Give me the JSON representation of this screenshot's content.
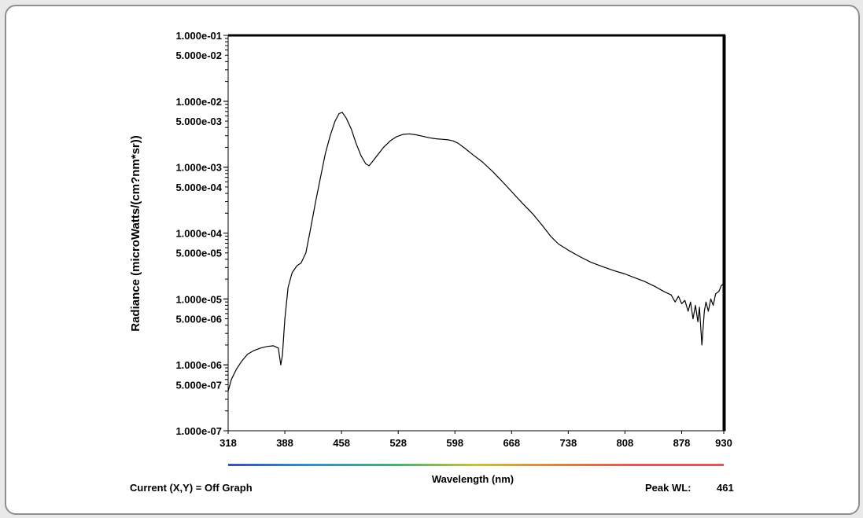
{
  "status": {
    "current_readout": "Current (X,Y) = Off Graph",
    "peak_label": "Peak WL:",
    "peak_value": "461"
  },
  "chart_data": {
    "type": "line",
    "ylabel": "Radiance (microWatts/(cm?nm*sr))",
    "xlabel": "Wavelength (nm)",
    "x_ticks": [
      318,
      388,
      458,
      528,
      598,
      668,
      738,
      808,
      878,
      930
    ],
    "x_tick_labels": [
      "318",
      "388",
      "458",
      "528",
      "598",
      "668",
      "738",
      "808",
      "878",
      "930"
    ],
    "xlim": [
      318,
      930
    ],
    "y_scale": "log",
    "ylim": [
      1e-07,
      0.1
    ],
    "y_tick_labels": [
      {
        "value": 0.1,
        "label": "1.000e-01"
      },
      {
        "value": 0.05,
        "label": "5.000e-02"
      },
      {
        "value": 0.01,
        "label": "1.000e-02"
      },
      {
        "value": 0.005,
        "label": "5.000e-03"
      },
      {
        "value": 0.001,
        "label": "1.000e-03"
      },
      {
        "value": 0.0005,
        "label": "5.000e-04"
      },
      {
        "value": 0.0001,
        "label": "1.000e-04"
      },
      {
        "value": 5e-05,
        "label": "5.000e-05"
      },
      {
        "value": 1e-05,
        "label": "1.000e-05"
      },
      {
        "value": 5e-06,
        "label": "5.000e-06"
      },
      {
        "value": 1e-06,
        "label": "1.000e-06"
      },
      {
        "value": 5e-07,
        "label": "5.000e-07"
      },
      {
        "value": 1e-07,
        "label": "1.000e-07"
      }
    ],
    "series": [
      {
        "color": "#000000",
        "points": [
          [
            318,
            4e-07
          ],
          [
            322,
            6e-07
          ],
          [
            328,
            8.5e-07
          ],
          [
            335,
            1.15e-06
          ],
          [
            342,
            1.45e-06
          ],
          [
            350,
            1.65e-06
          ],
          [
            358,
            1.8e-06
          ],
          [
            366,
            1.9e-06
          ],
          [
            374,
            1.95e-06
          ],
          [
            380,
            1.8e-06
          ],
          [
            383,
            1e-06
          ],
          [
            385,
            1.4e-06
          ],
          [
            388,
            5e-06
          ],
          [
            392,
            1.5e-05
          ],
          [
            397,
            2.5e-05
          ],
          [
            403,
            3.2e-05
          ],
          [
            408,
            3.5e-05
          ],
          [
            414,
            5e-05
          ],
          [
            420,
            0.00012
          ],
          [
            426,
            0.0003
          ],
          [
            432,
            0.0007
          ],
          [
            438,
            0.0016
          ],
          [
            444,
            0.003
          ],
          [
            450,
            0.005
          ],
          [
            455,
            0.0065
          ],
          [
            459,
            0.0068
          ],
          [
            464,
            0.0055
          ],
          [
            470,
            0.0038
          ],
          [
            476,
            0.0023
          ],
          [
            482,
            0.0015
          ],
          [
            488,
            0.00112
          ],
          [
            492,
            0.00105
          ],
          [
            496,
            0.0012
          ],
          [
            502,
            0.0015
          ],
          [
            510,
            0.002
          ],
          [
            518,
            0.0025
          ],
          [
            526,
            0.0029
          ],
          [
            534,
            0.00315
          ],
          [
            542,
            0.0032
          ],
          [
            550,
            0.0031
          ],
          [
            558,
            0.00295
          ],
          [
            566,
            0.0028
          ],
          [
            574,
            0.0027
          ],
          [
            582,
            0.00265
          ],
          [
            590,
            0.0026
          ],
          [
            596,
            0.0025
          ],
          [
            602,
            0.0023
          ],
          [
            610,
            0.00195
          ],
          [
            620,
            0.00155
          ],
          [
            632,
            0.0012
          ],
          [
            645,
            0.00085
          ],
          [
            658,
            0.00058
          ],
          [
            670,
            0.0004
          ],
          [
            683,
            0.00027
          ],
          [
            695,
            0.00019
          ],
          [
            706,
            0.00013
          ],
          [
            716,
            9e-05
          ],
          [
            726,
            6.8e-05
          ],
          [
            738,
            5.5e-05
          ],
          [
            752,
            4.4e-05
          ],
          [
            766,
            3.6e-05
          ],
          [
            780,
            3.1e-05
          ],
          [
            794,
            2.7e-05
          ],
          [
            808,
            2.4e-05
          ],
          [
            820,
            2.1e-05
          ],
          [
            832,
            1.85e-05
          ],
          [
            845,
            1.55e-05
          ],
          [
            856,
            1.3e-05
          ],
          [
            865,
            1.15e-05
          ],
          [
            870,
            9e-06
          ],
          [
            874,
            1.1e-05
          ],
          [
            878,
            8.5e-06
          ],
          [
            882,
            9.5e-06
          ],
          [
            886,
            6.5e-06
          ],
          [
            889,
            9e-06
          ],
          [
            892,
            5e-06
          ],
          [
            895,
            8e-06
          ],
          [
            898,
            4.5e-06
          ],
          [
            900,
            7.5e-06
          ],
          [
            903,
            2e-06
          ],
          [
            906,
            6.5e-06
          ],
          [
            908,
            9e-06
          ],
          [
            911,
            6.5e-06
          ],
          [
            914,
            1e-05
          ],
          [
            917,
            8e-06
          ],
          [
            920,
            1.2e-05
          ],
          [
            924,
            1.3e-05
          ],
          [
            927,
            1.6e-05
          ],
          [
            930,
            1.7e-05
          ]
        ]
      }
    ],
    "wavelength_bar_colors": [
      "#3b4cc0",
      "#2f8fd0",
      "#3cb371",
      "#c9c13a",
      "#e0813b",
      "#e05454",
      "#e05454"
    ],
    "grid": false,
    "legend": "none"
  }
}
